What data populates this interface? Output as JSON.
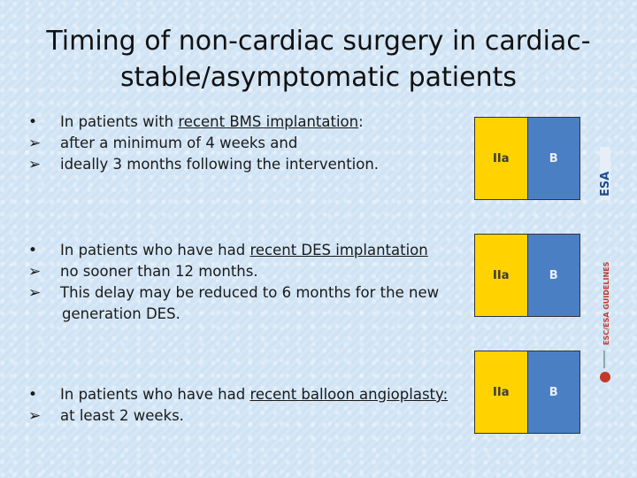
{
  "slide": {
    "title_line1": "Timing of non-cardiac surgery in cardiac-",
    "title_line2": "stable/asymptomatic patients"
  },
  "sections": [
    {
      "lead": "In patients with ",
      "lead_underlined": "recent BMS implantation",
      "lead_tail": ":",
      "points": [
        "after a minimum of 4 weeks and",
        "ideally 3 months following the intervention."
      ],
      "class": "IIa",
      "level": "B"
    },
    {
      "lead": "In patients who have had ",
      "lead_underlined": "recent DES implantation",
      "lead_tail": "",
      "points": [
        "no sooner than 12 months.",
        "This delay may be reduced to 6 months for the new",
        "generation DES."
      ],
      "class": "IIa",
      "level": "B"
    },
    {
      "lead": "In patients who have had ",
      "lead_underlined": "recent balloon angioplasty:",
      "lead_tail": "",
      "points": [
        "at least 2 weeks."
      ],
      "class": "IIa",
      "level": "B"
    }
  ],
  "side_branding": {
    "esa_logo_text": "ESA",
    "guidelines_text": "ESC/ESA GUIDELINES"
  },
  "colors": {
    "class_cell": "#ffd200",
    "level_cell": "#4b7fc4",
    "background": "#cfe3f5"
  },
  "icons": {
    "bullet": "round-bullet",
    "arrow": "arrow-bullet-icon"
  }
}
